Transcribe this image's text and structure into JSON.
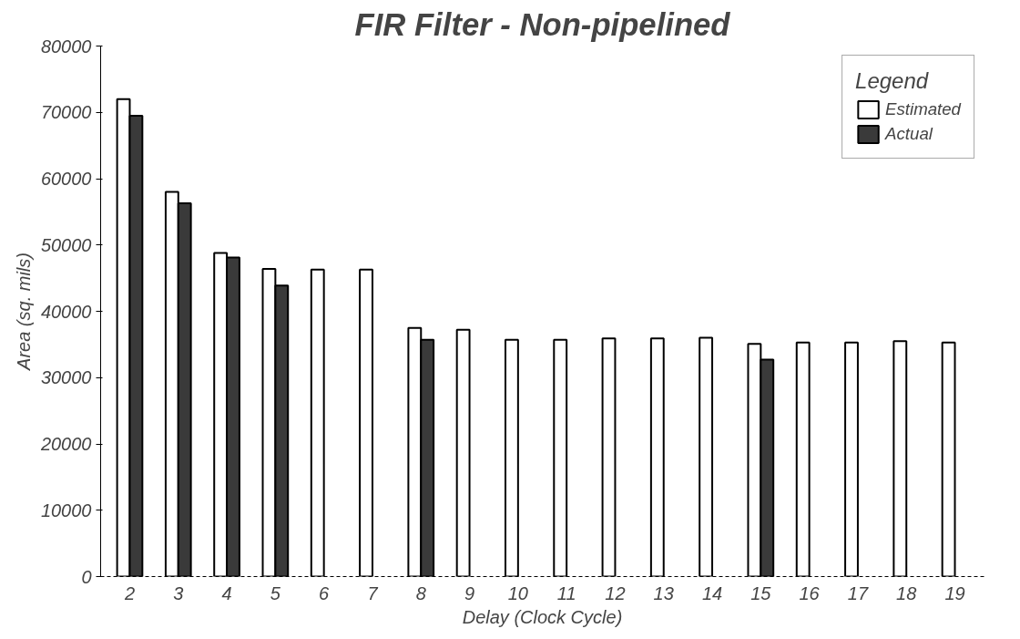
{
  "chart_data": {
    "type": "bar",
    "title": "FIR Filter - Non-pipelined",
    "xlabel": "Delay (Clock Cycle)",
    "ylabel": "Area (sq. mils)",
    "legend_title": "Legend",
    "categories": [
      "2",
      "3",
      "4",
      "5",
      "6",
      "7",
      "8",
      "9",
      "10",
      "11",
      "12",
      "13",
      "14",
      "15",
      "16",
      "17",
      "18",
      "19"
    ],
    "series": [
      {
        "name": "Estimated",
        "color": "#ffffff",
        "values": [
          72000,
          58000,
          48800,
          46400,
          46300,
          46300,
          37500,
          37200,
          35700,
          35700,
          35900,
          35900,
          36000,
          35100,
          35300,
          35300,
          35500,
          35300
        ]
      },
      {
        "name": "Actual",
        "color": "#3a3a3a",
        "values": [
          69500,
          56300,
          48100,
          43900,
          null,
          null,
          35700,
          null,
          null,
          null,
          null,
          null,
          null,
          32700,
          null,
          null,
          null,
          null
        ]
      }
    ],
    "ylim": [
      0,
      80000
    ],
    "yticks": [
      0,
      10000,
      20000,
      30000,
      40000,
      50000,
      60000,
      70000,
      80000
    ],
    "grid": false,
    "legend": "top right"
  }
}
